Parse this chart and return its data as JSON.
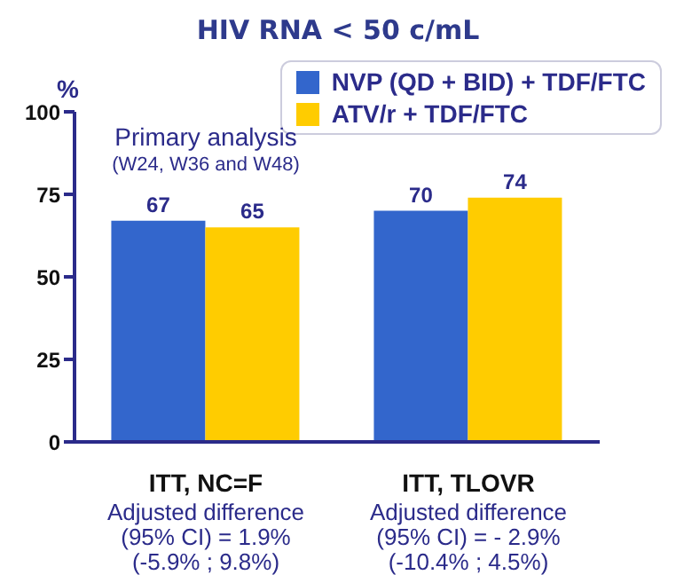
{
  "chart_data": {
    "type": "bar",
    "title": "HIV RNA < 50 c/mL",
    "ylabel": "%",
    "categories": [
      "ITT, NC=F",
      "ITT, TLOVR"
    ],
    "series": [
      {
        "name": "NVP (QD + BID) + TDF/FTC",
        "color": "#3366cc",
        "values": [
          67,
          70
        ]
      },
      {
        "name": "ATV/r + TDF/FTC",
        "color": "#ffcc00",
        "values": [
          65,
          74
        ]
      }
    ],
    "ylim": [
      0,
      100
    ],
    "yticks": [
      0,
      25,
      50,
      75,
      100
    ],
    "grid": false,
    "legend": "top right",
    "data_labels": true,
    "annotations": [
      "Primary analysis",
      "(W24, W36 and W48)",
      "Adjusted difference\n(95% CI) = 1.9%\n(-5.9% ; 9.8%)",
      "Adjusted difference\n(95% CI) = - 2.9%\n(-10.4% ; 4.5%)"
    ]
  }
}
